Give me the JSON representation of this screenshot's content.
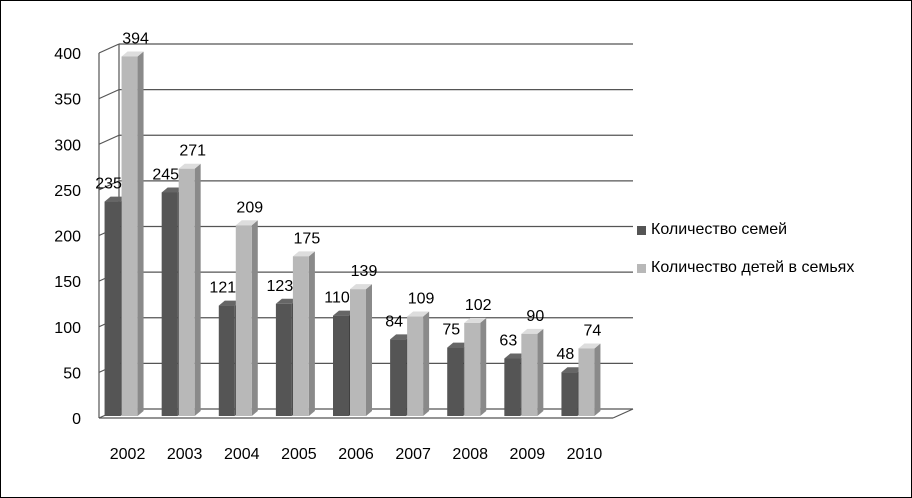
{
  "chart_data": {
    "type": "bar",
    "categories": [
      "2002",
      "2003",
      "2004",
      "2005",
      "2006",
      "2007",
      "2008",
      "2009",
      "2010"
    ],
    "series": [
      {
        "name": "Количество семей",
        "values": [
          235,
          245,
          121,
          123,
          110,
          84,
          75,
          63,
          48
        ],
        "color": "#555555"
      },
      {
        "name": "Количество детей в семьях",
        "values": [
          394,
          271,
          209,
          175,
          139,
          109,
          102,
          90,
          74
        ],
        "color": "#b8b8b8"
      }
    ],
    "yticks": [
      "0",
      "50",
      "100",
      "150",
      "200",
      "250",
      "300",
      "350",
      "400"
    ],
    "ylim": [
      0,
      400
    ],
    "grid": true,
    "legend_position": "right",
    "style": "3d-clustered-column"
  }
}
